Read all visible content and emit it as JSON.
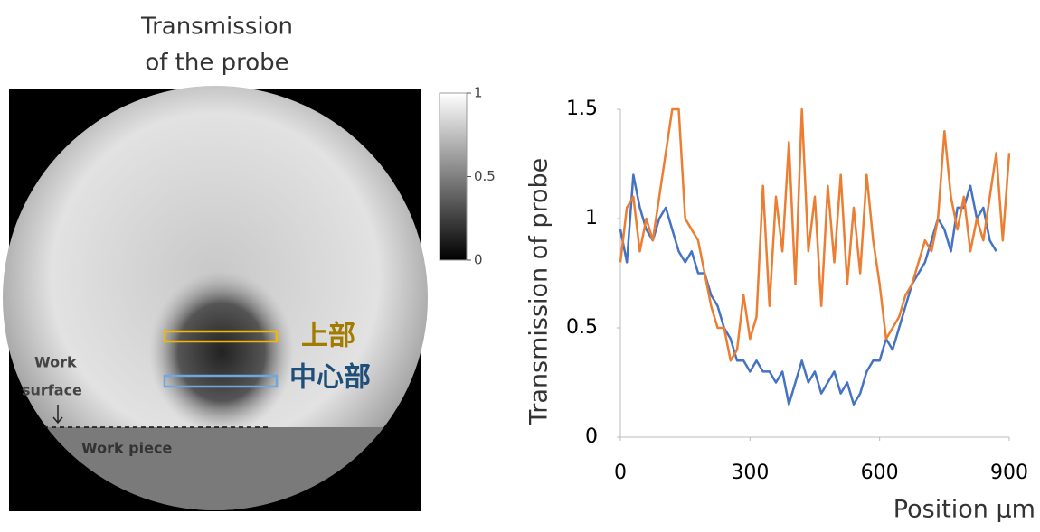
{
  "image_panel": {
    "title_lines": [
      "Transmission",
      "of the probe"
    ],
    "colorbar": {
      "lim": [
        0,
        1
      ],
      "ticks": [
        0,
        0.5,
        1
      ]
    },
    "annotations": {
      "upper": "上部",
      "center": "中心部",
      "surface_lines": [
        "Work",
        "surface"
      ],
      "piece": "Work piece"
    }
  },
  "chart_data": {
    "type": "line",
    "y_label": "Transmission of probe",
    "x_label": "Position μm",
    "xlim": [
      0,
      900
    ],
    "xticks": [
      0,
      300,
      600,
      900
    ],
    "ylim": [
      0,
      1.5
    ],
    "yticks": [
      0,
      0.5,
      1,
      1.5
    ],
    "x": [
      0,
      15,
      30,
      45,
      60,
      75,
      90,
      105,
      120,
      135,
      150,
      165,
      180,
      195,
      210,
      225,
      240,
      255,
      270,
      285,
      300,
      315,
      330,
      345,
      360,
      375,
      390,
      405,
      420,
      435,
      450,
      465,
      480,
      495,
      510,
      525,
      540,
      555,
      570,
      585,
      600,
      615,
      630,
      645,
      660,
      675,
      690,
      705,
      720,
      735,
      750,
      765,
      780,
      795,
      810,
      825,
      840,
      855,
      870,
      885,
      900
    ],
    "series": [
      {
        "color": "#4472c4",
        "values": [
          0.95,
          0.8,
          1.2,
          1.05,
          0.95,
          0.9,
          1.0,
          1.05,
          0.95,
          0.85,
          0.8,
          0.85,
          0.75,
          0.75,
          0.65,
          0.6,
          0.5,
          0.45,
          0.35,
          0.35,
          0.3,
          0.35,
          0.3,
          0.3,
          0.25,
          0.3,
          0.15,
          0.25,
          0.35,
          0.25,
          0.3,
          0.2,
          0.25,
          0.3,
          0.2,
          0.25,
          0.15,
          0.2,
          0.3,
          0.35,
          0.35,
          0.45,
          0.4,
          0.5,
          0.6,
          0.7,
          0.75,
          0.8,
          0.9,
          1.0,
          0.95,
          0.85,
          1.05,
          1.05,
          1.15,
          1.0,
          1.05,
          0.9,
          0.85,
          null,
          null
        ]
      },
      {
        "color": "#ed7d31",
        "values": [
          0.8,
          1.05,
          1.1,
          0.85,
          1.0,
          0.9,
          1.1,
          1.3,
          1.5,
          1.5,
          1.0,
          0.95,
          0.9,
          0.75,
          0.6,
          0.5,
          0.5,
          0.35,
          0.4,
          0.65,
          0.45,
          0.55,
          1.15,
          0.6,
          1.1,
          0.85,
          1.35,
          0.7,
          1.5,
          0.85,
          1.1,
          0.6,
          1.15,
          0.8,
          1.2,
          0.7,
          1.05,
          0.75,
          1.2,
          0.9,
          0.7,
          0.45,
          0.5,
          0.55,
          0.65,
          0.7,
          0.8,
          0.9,
          0.85,
          1.0,
          1.4,
          1.1,
          0.95,
          1.1,
          0.85,
          1.0,
          0.9,
          1.1,
          1.3,
          0.9,
          1.3
        ]
      }
    ]
  }
}
